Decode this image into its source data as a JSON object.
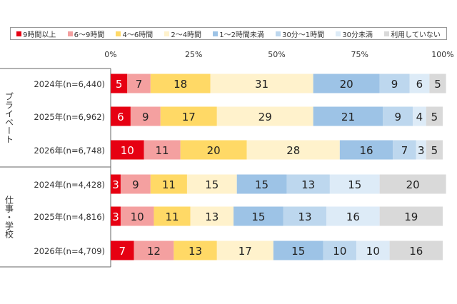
{
  "chart_data": {
    "type": "bar",
    "orientation": "horizontal",
    "stacked": "percent",
    "xlim": [
      0,
      100
    ],
    "x_ticks": [
      "0%",
      "25%",
      "50%",
      "75%",
      "100%"
    ],
    "groups": [
      {
        "label": "プライベート",
        "rows": [
          "2024年(n=6,440)",
          "2025年(n=6,962)",
          "2026年(n=6,748)"
        ]
      },
      {
        "label": "仕事・学校",
        "rows": [
          "2024年(n=4,428)",
          "2025年(n=4,816)",
          "2026年(n=4,709)"
        ]
      }
    ],
    "categories": [
      "2024年(n=6,440)",
      "2025年(n=6,962)",
      "2026年(n=6,748)",
      "2024年(n=4,428)",
      "2025年(n=4,816)",
      "2026年(n=4,709)"
    ],
    "series": [
      {
        "name": "9時間以上",
        "color": "#e60012",
        "values": [
          5,
          6,
          10,
          3,
          3,
          7
        ]
      },
      {
        "name": "6～9時間",
        "color": "#f4a0a0",
        "values": [
          7,
          9,
          11,
          9,
          10,
          12
        ]
      },
      {
        "name": "4～6時間",
        "color": "#ffd966",
        "values": [
          18,
          17,
          20,
          11,
          11,
          13
        ]
      },
      {
        "name": "2～4時間",
        "color": "#fff2cc",
        "values": [
          31,
          29,
          28,
          15,
          13,
          17
        ]
      },
      {
        "name": "1～2時間未満",
        "color": "#9dc3e6",
        "values": [
          20,
          21,
          16,
          15,
          15,
          15
        ]
      },
      {
        "name": "30分～1時間",
        "color": "#bdd7ee",
        "values": [
          9,
          9,
          7,
          13,
          13,
          10
        ]
      },
      {
        "name": "30分未満",
        "color": "#ddebf7",
        "values": [
          6,
          4,
          3,
          15,
          16,
          10
        ]
      },
      {
        "name": "利用していない",
        "color": "#d9d9d9",
        "values": [
          5,
          5,
          5,
          20,
          19,
          16
        ]
      }
    ],
    "legend_position": "top",
    "grid": false
  }
}
